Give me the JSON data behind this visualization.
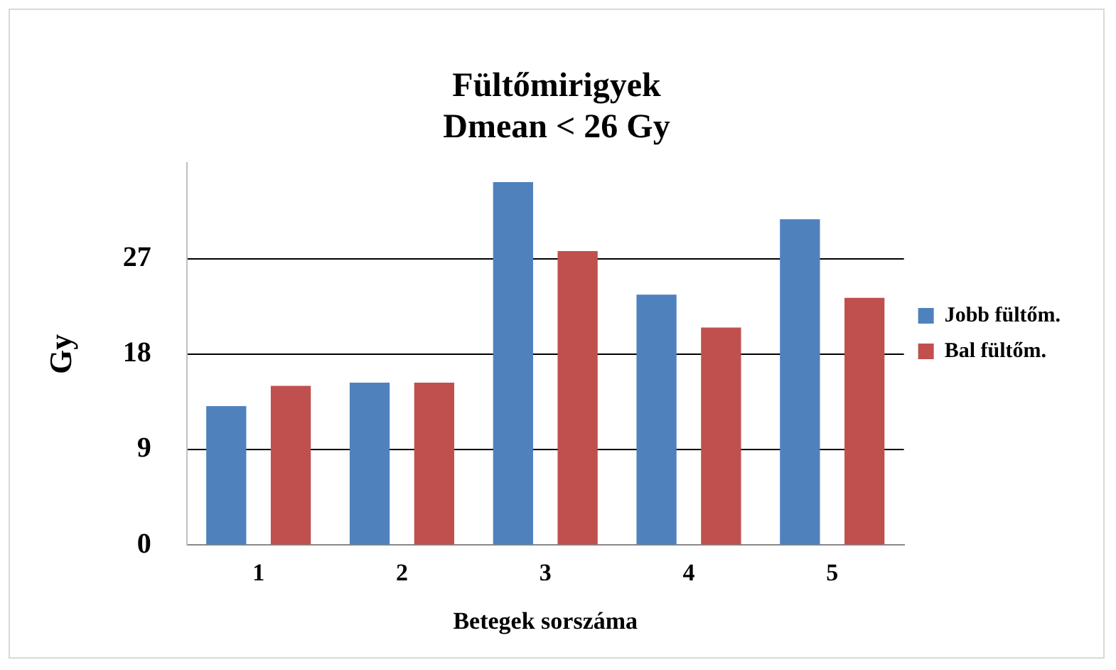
{
  "chart_data": {
    "type": "bar",
    "title": "Fültőmirigyek\nDmean < 26 Gy",
    "xlabel": "Betegek sorszáma",
    "ylabel": "Gy",
    "categories": [
      "1",
      "2",
      "3",
      "4",
      "5"
    ],
    "series": [
      {
        "name": "Jobb fültőm.",
        "color": "#4f81bd",
        "values": [
          13.1,
          15.3,
          34.2,
          23.6,
          30.7
        ]
      },
      {
        "name": "Bal fültőm.",
        "color": "#c0504d",
        "values": [
          15.0,
          15.3,
          27.7,
          20.5,
          23.3
        ]
      }
    ],
    "ylim": [
      0,
      36
    ],
    "yticks": [
      0,
      9,
      18,
      27
    ],
    "grid": "y",
    "legend": "right"
  }
}
